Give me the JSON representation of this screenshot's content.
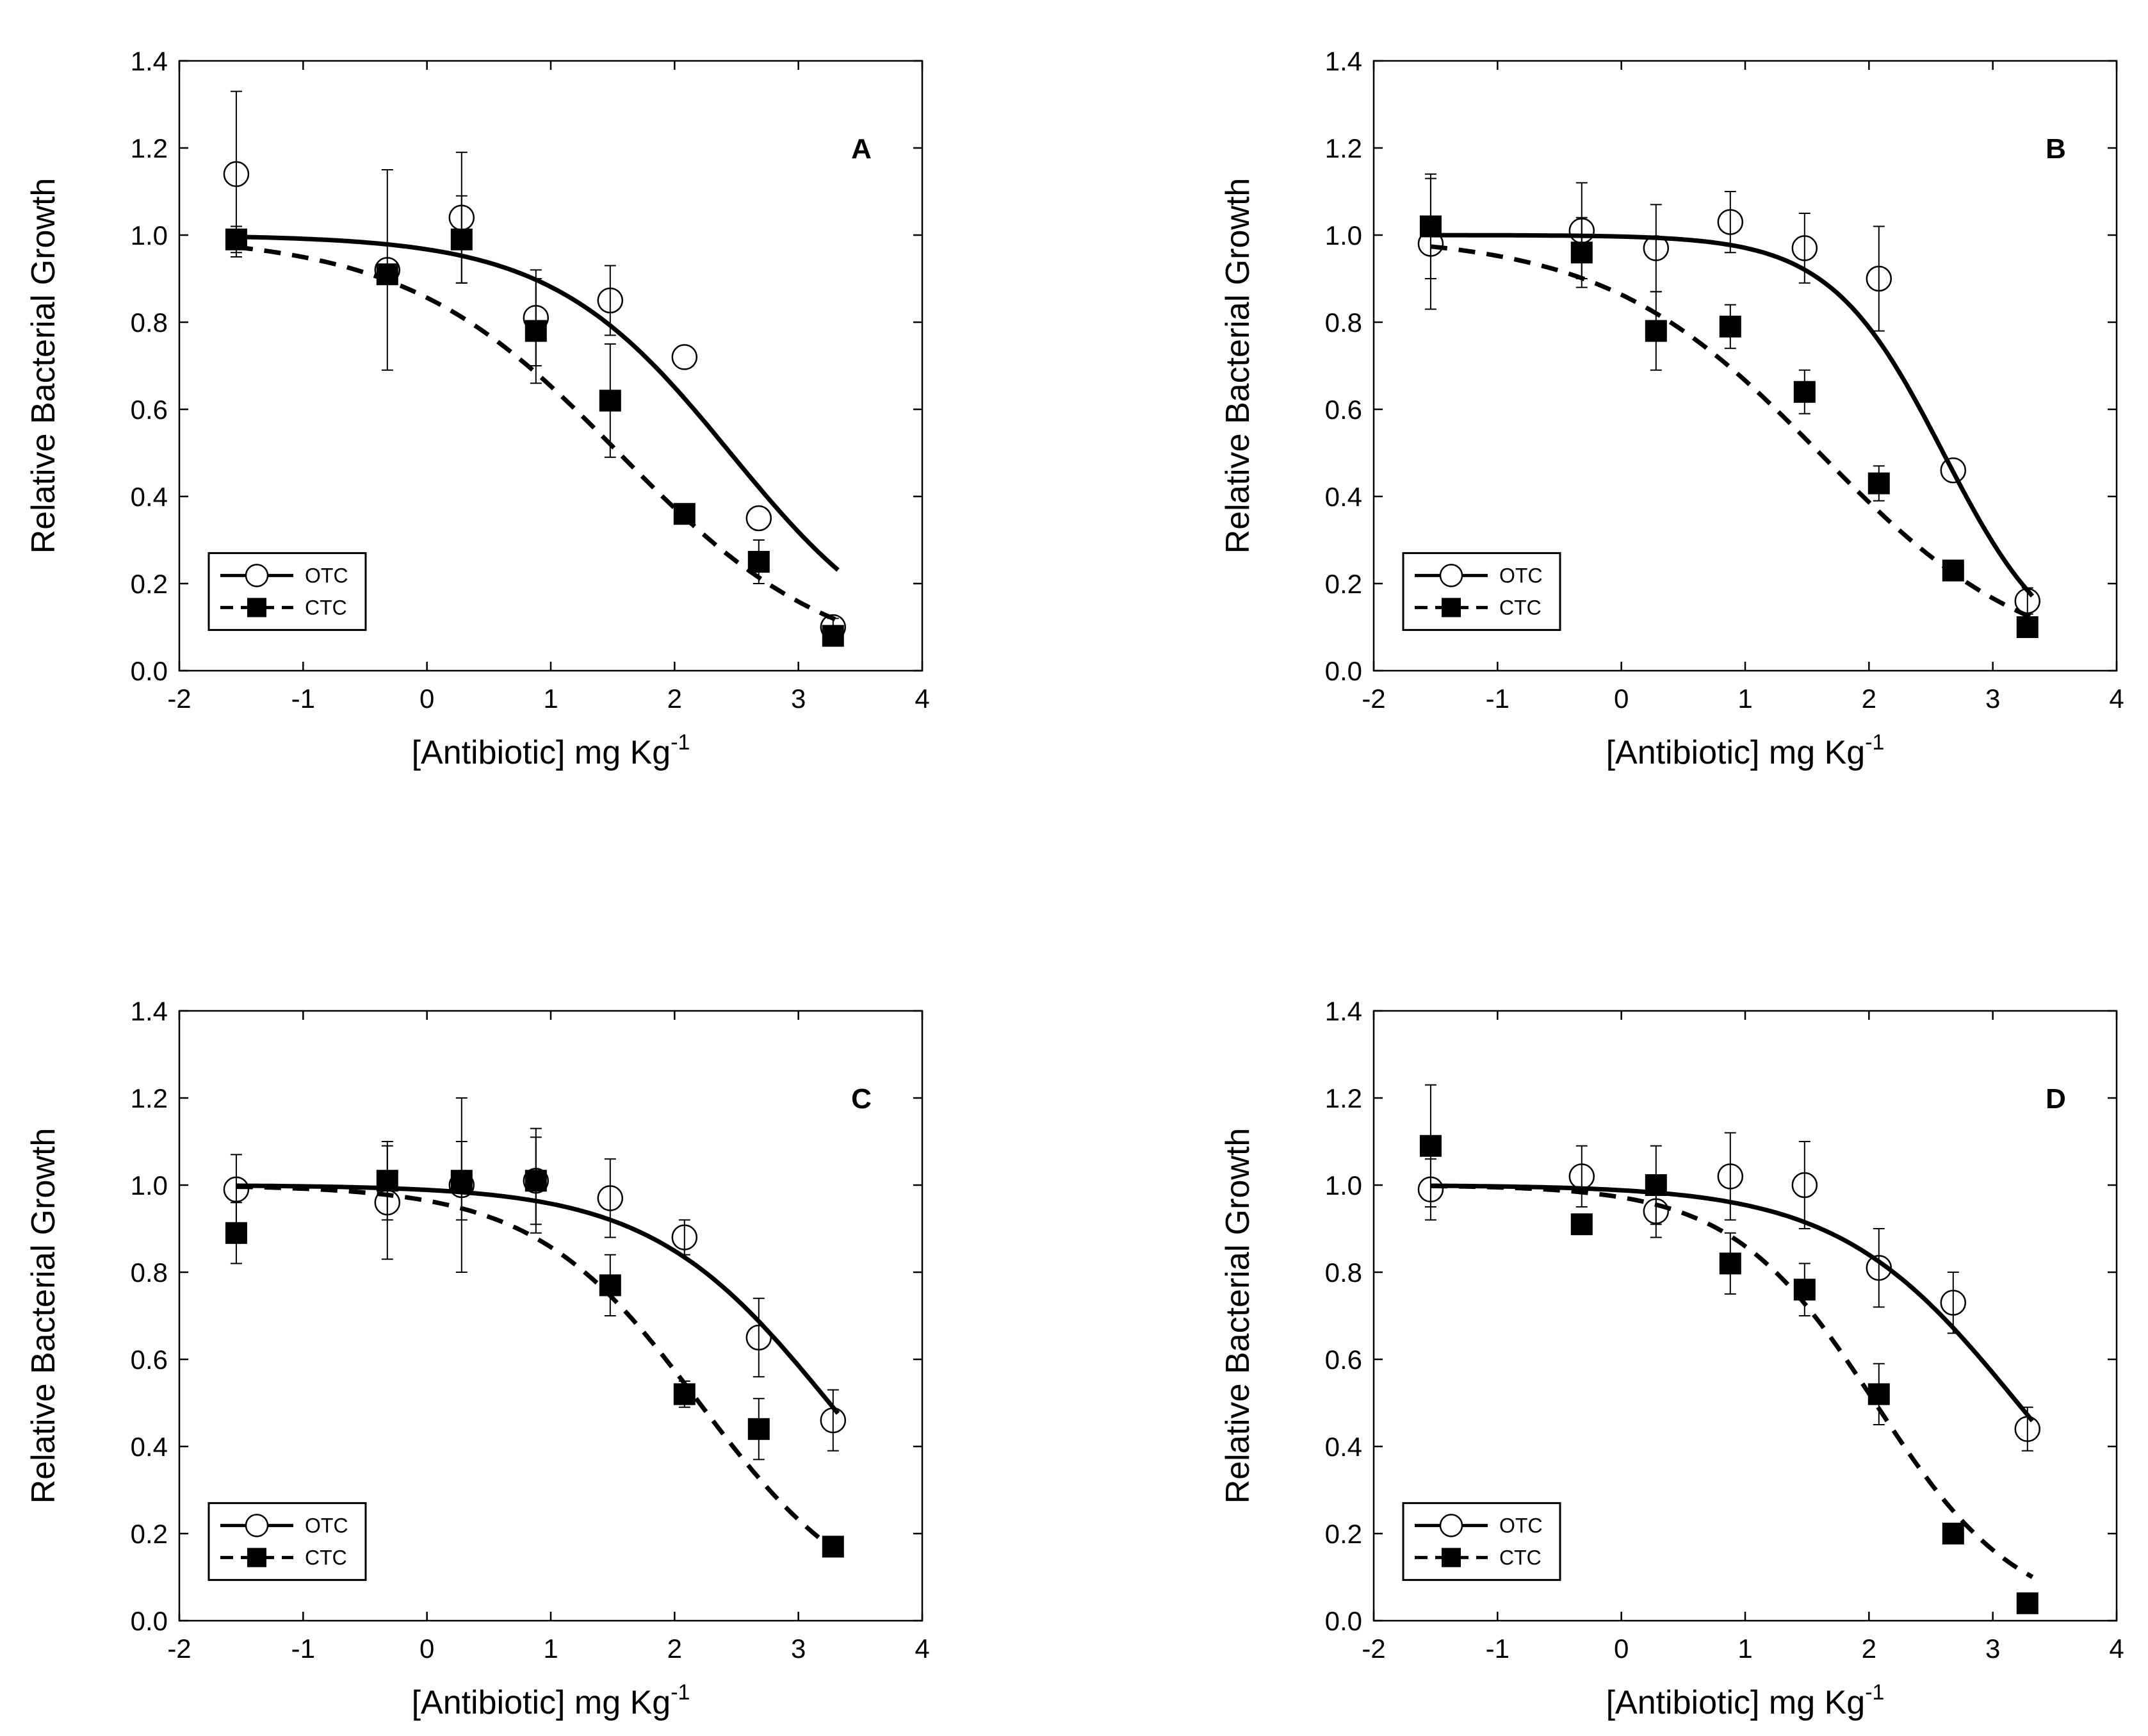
{
  "chart_data": [
    {
      "type": "scatter",
      "panel_label": "A",
      "xlabel": "[Antibiotic] mg Kg",
      "xlabel_sup": "-1",
      "ylabel": "Relative Bacterial Growth",
      "xlim": [
        -2,
        4
      ],
      "ylim": [
        0.0,
        1.4
      ],
      "xticks": [
        -2,
        -1,
        0,
        1,
        2,
        3,
        4
      ],
      "xtick_labels": [
        "-2",
        "-1",
        "0",
        "1",
        "2",
        "3",
        "4"
      ],
      "yticks": [
        0.0,
        0.2,
        0.4,
        0.6,
        0.8,
        1.0,
        1.2,
        1.4
      ],
      "ytick_labels": [
        "0.0",
        "0.2",
        "0.4",
        "0.6",
        "0.8",
        "1.0",
        "1.2",
        "1.4"
      ],
      "legend_position": "bottom-left",
      "series": [
        {
          "name": "OTC",
          "marker": "open-circle",
          "fit_line": "solid",
          "x": [
            -1.54,
            -0.32,
            0.28,
            0.88,
            1.48,
            2.08,
            2.68,
            3.28
          ],
          "y": [
            1.14,
            0.92,
            1.04,
            0.81,
            0.85,
            0.72,
            0.35,
            0.1
          ],
          "err": [
            0.19,
            0.23,
            0.15,
            0.11,
            0.08,
            0.0,
            0.0,
            0.02
          ],
          "fit": {
            "ec50": 2.45,
            "hill": 0.6
          }
        },
        {
          "name": "CTC",
          "marker": "filled-square",
          "fit_line": "dashed",
          "x": [
            -1.54,
            -0.32,
            0.28,
            0.88,
            1.48,
            2.08,
            2.68,
            3.28
          ],
          "y": [
            0.99,
            0.91,
            0.99,
            0.78,
            0.62,
            0.36,
            0.25,
            0.08
          ],
          "err": [
            0.03,
            0.0,
            0.1,
            0.12,
            0.13,
            0.0,
            0.05,
            0.0
          ],
          "fit": {
            "ec50": 1.55,
            "hill": 0.5
          }
        }
      ]
    },
    {
      "type": "scatter",
      "panel_label": "B",
      "xlabel": "[Antibiotic] mg Kg",
      "xlabel_sup": "-1",
      "ylabel": "Relative Bacterial Growth",
      "xlim": [
        -2,
        4
      ],
      "ylim": [
        0.0,
        1.4
      ],
      "xticks": [
        -2,
        -1,
        0,
        1,
        2,
        3,
        4
      ],
      "xtick_labels": [
        "-2",
        "-1",
        "0",
        "1",
        "2",
        "3",
        "4"
      ],
      "yticks": [
        0.0,
        0.2,
        0.4,
        0.6,
        0.8,
        1.0,
        1.2,
        1.4
      ],
      "ytick_labels": [
        "0.0",
        "0.2",
        "0.4",
        "0.6",
        "0.8",
        "1.0",
        "1.2",
        "1.4"
      ],
      "legend_position": "bottom-left",
      "series": [
        {
          "name": "OTC",
          "marker": "open-circle",
          "fit_line": "solid",
          "x": [
            -1.54,
            -0.32,
            0.28,
            0.88,
            1.48,
            2.08,
            2.68,
            3.28
          ],
          "y": [
            0.98,
            1.01,
            0.97,
            1.03,
            0.97,
            0.9,
            0.46,
            0.16
          ],
          "err": [
            0.15,
            0.11,
            0.1,
            0.07,
            0.08,
            0.12,
            0.0,
            0.03
          ],
          "fit": {
            "ec50": 2.6,
            "hill": 0.95
          }
        },
        {
          "name": "CTC",
          "marker": "filled-square",
          "fit_line": "dashed",
          "x": [
            -1.54,
            -0.32,
            0.28,
            0.88,
            1.48,
            2.08,
            2.68,
            3.28
          ],
          "y": [
            1.02,
            0.96,
            0.78,
            0.79,
            0.64,
            0.43,
            0.23,
            0.1
          ],
          "err": [
            0.12,
            0.08,
            0.09,
            0.05,
            0.05,
            0.04,
            0.0,
            0.0
          ],
          "fit": {
            "ec50": 1.6,
            "hill": 0.5
          }
        }
      ]
    },
    {
      "type": "scatter",
      "panel_label": "C",
      "xlabel": "[Antibiotic] mg Kg",
      "xlabel_sup": "-1",
      "ylabel": "Relative Bacterial Growth",
      "xlim": [
        -2,
        4
      ],
      "ylim": [
        0.0,
        1.4
      ],
      "xticks": [
        -2,
        -1,
        0,
        1,
        2,
        3,
        4
      ],
      "xtick_labels": [
        "-2",
        "-1",
        "0",
        "1",
        "2",
        "3",
        "4"
      ],
      "yticks": [
        0.0,
        0.2,
        0.4,
        0.6,
        0.8,
        1.0,
        1.2,
        1.4
      ],
      "ytick_labels": [
        "0.0",
        "0.2",
        "0.4",
        "0.6",
        "0.8",
        "1.0",
        "1.2",
        "1.4"
      ],
      "legend_position": "bottom-left",
      "series": [
        {
          "name": "OTC",
          "marker": "open-circle",
          "fit_line": "solid",
          "x": [
            -1.54,
            -0.32,
            0.28,
            0.88,
            1.48,
            2.08,
            2.68,
            3.28
          ],
          "y": [
            0.99,
            0.96,
            1.0,
            1.01,
            0.97,
            0.88,
            0.65,
            0.46
          ],
          "err": [
            0.08,
            0.13,
            0.2,
            0.12,
            0.09,
            0.04,
            0.09,
            0.07
          ],
          "fit": {
            "ec50": 3.25,
            "hill": 0.6
          }
        },
        {
          "name": "CTC",
          "marker": "filled-square",
          "fit_line": "dashed",
          "x": [
            -1.54,
            -0.32,
            0.28,
            0.88,
            1.48,
            2.08,
            2.68,
            3.28
          ],
          "y": [
            0.89,
            1.01,
            1.01,
            1.01,
            0.77,
            0.52,
            0.44,
            0.17
          ],
          "err": [
            0.07,
            0.09,
            0.09,
            0.1,
            0.07,
            0.03,
            0.07,
            0.0
          ],
          "fit": {
            "ec50": 2.2,
            "hill": 0.65
          }
        }
      ]
    },
    {
      "type": "scatter",
      "panel_label": "D",
      "xlabel": "[Antibiotic] mg Kg",
      "xlabel_sup": "-1",
      "ylabel": "Relative Bacterial Growth",
      "xlim": [
        -2,
        4
      ],
      "ylim": [
        0.0,
        1.4
      ],
      "xticks": [
        -2,
        -1,
        0,
        1,
        2,
        3,
        4
      ],
      "xtick_labels": [
        "-2",
        "-1",
        "0",
        "1",
        "2",
        "3",
        "4"
      ],
      "yticks": [
        0.0,
        0.2,
        0.4,
        0.6,
        0.8,
        1.0,
        1.2,
        1.4
      ],
      "ytick_labels": [
        "0.0",
        "0.2",
        "0.4",
        "0.6",
        "0.8",
        "1.0",
        "1.2",
        "1.4"
      ],
      "legend_position": "bottom-left",
      "series": [
        {
          "name": "OTC",
          "marker": "open-circle",
          "fit_line": "solid",
          "x": [
            -1.54,
            -0.32,
            0.28,
            0.88,
            1.48,
            2.08,
            2.68,
            3.28
          ],
          "y": [
            0.99,
            1.02,
            0.94,
            1.02,
            1.0,
            0.81,
            0.73,
            0.44
          ],
          "err": [
            0.07,
            0.07,
            0.06,
            0.1,
            0.1,
            0.09,
            0.07,
            0.05
          ],
          "fit": {
            "ec50": 3.2,
            "hill": 0.6
          }
        },
        {
          "name": "CTC",
          "marker": "filled-square",
          "fit_line": "dashed",
          "x": [
            -1.54,
            -0.32,
            0.28,
            0.88,
            1.48,
            2.08,
            2.68,
            3.28
          ],
          "y": [
            1.09,
            0.91,
            1.0,
            0.82,
            0.76,
            0.52,
            0.2,
            0.04
          ],
          "err": [
            0.14,
            0.0,
            0.09,
            0.07,
            0.06,
            0.07,
            0.0,
            0.0
          ],
          "fit": {
            "ec50": 2.05,
            "hill": 0.75
          }
        }
      ]
    }
  ]
}
